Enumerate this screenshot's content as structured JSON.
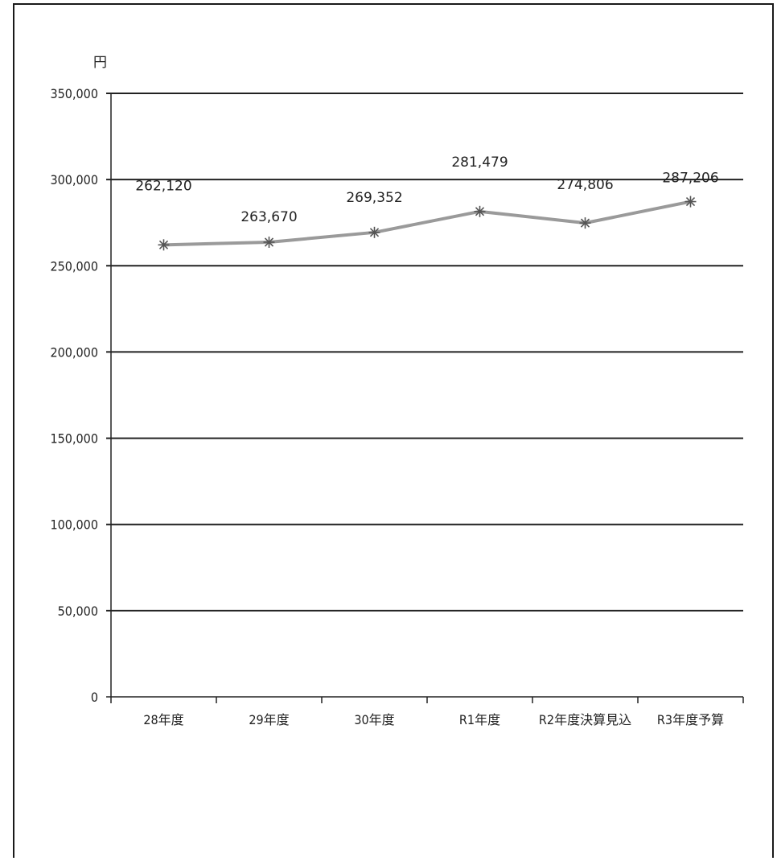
{
  "chart_data": {
    "type": "line",
    "title": "",
    "unit_label": "円",
    "xlabel": "",
    "ylabel": "",
    "categories": [
      "28年度",
      "29年度",
      "30年度",
      "R1年度",
      "R2年度決算見込",
      "R3年度予算"
    ],
    "series": [
      {
        "values": [
          262120,
          263670,
          269352,
          281479,
          274806,
          287206
        ],
        "data_labels": [
          "262,120",
          "263,670",
          "269,352",
          "281,479",
          "274,806",
          "287,206"
        ],
        "color": "#9a9a9a",
        "marker": "asterisk"
      }
    ],
    "y_ticks": [
      0,
      50000,
      100000,
      150000,
      200000,
      250000,
      300000,
      350000
    ],
    "y_tick_labels": [
      "0",
      "50,000",
      "100,000",
      "150,000",
      "200,000",
      "250,000",
      "300,000",
      "350,000"
    ],
    "ylim": [
      0,
      350000
    ],
    "grid": true,
    "legend": "none"
  }
}
